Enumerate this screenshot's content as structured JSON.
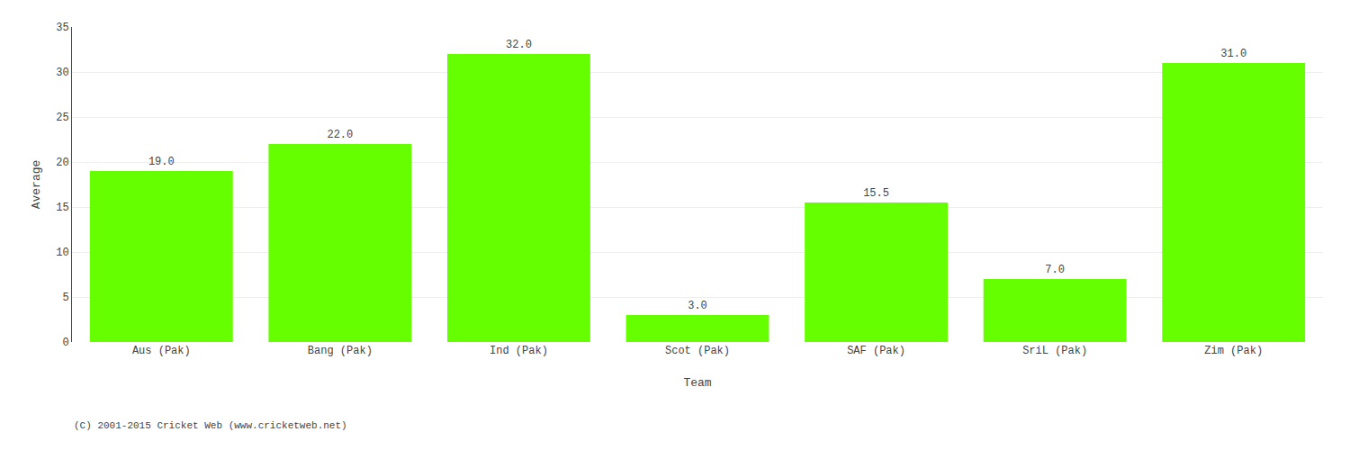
{
  "chart_data": {
    "type": "bar",
    "categories": [
      "Aus (Pak)",
      "Bang (Pak)",
      "Ind (Pak)",
      "Scot (Pak)",
      "SAF (Pak)",
      "SriL (Pak)",
      "Zim (Pak)"
    ],
    "values": [
      19.0,
      22.0,
      32.0,
      3.0,
      15.5,
      7.0,
      31.0
    ],
    "value_labels": [
      "19.0",
      "22.0",
      "32.0",
      "3.0",
      "15.5",
      "7.0",
      "31.0"
    ],
    "data_labels": true,
    "color": "#66ff00",
    "x_label": "Team",
    "y_label": "Average",
    "ylim": [
      0,
      35
    ],
    "yticks": [
      0,
      5,
      10,
      15,
      20,
      25,
      30,
      35
    ],
    "grid": true,
    "annotations": [
      "(C) 2001-2015 Cricket Web (www.cricketweb.net)"
    ]
  }
}
